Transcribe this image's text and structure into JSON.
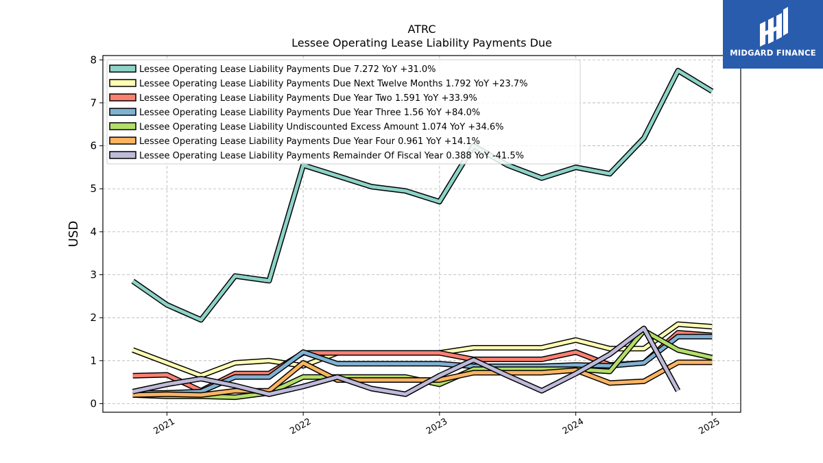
{
  "brand": {
    "name": "MIDGARD FINANCE",
    "bg_color": "#2a5cad",
    "icon": "midgard-logo-icon"
  },
  "chart_data": {
    "type": "line",
    "title": "ATRC",
    "subtitle": "Lessee Operating Lease Liability Payments Due",
    "ylabel": "USD",
    "xlabel": "",
    "ylim": [
      -0.2,
      8.1
    ],
    "xlim": [
      2020.53,
      2025.21
    ],
    "y_ticks": [
      0,
      1,
      2,
      3,
      4,
      5,
      6,
      7,
      8
    ],
    "x_ticks": [
      "2021",
      "2022",
      "2023",
      "2024",
      "2025"
    ],
    "grid": true,
    "legend_position": "top-left",
    "series": [
      {
        "name": "Lessee Operating Lease Liability Payments Due",
        "legend": "Lessee Operating Lease Liability Payments Due  7.272 YoY +31.0%",
        "color": "#8dd3c7",
        "points": [
          [
            2020.75,
            2.85
          ],
          [
            2021.0,
            2.3
          ],
          [
            2021.25,
            1.95
          ],
          [
            2021.5,
            2.97
          ],
          [
            2021.75,
            2.86
          ],
          [
            2022.0,
            5.55
          ],
          [
            2022.25,
            5.3
          ],
          [
            2022.5,
            5.05
          ],
          [
            2022.75,
            4.95
          ],
          [
            2023.0,
            4.7
          ],
          [
            2023.25,
            6.0
          ],
          [
            2023.5,
            5.55
          ],
          [
            2023.75,
            5.25
          ],
          [
            2024.0,
            5.5
          ],
          [
            2024.25,
            5.35
          ],
          [
            2024.5,
            6.18
          ],
          [
            2024.75,
            7.75
          ],
          [
            2025.0,
            7.27
          ]
        ]
      },
      {
        "name": "Lessee Operating Lease Liability Payments Due Next Twelve Months",
        "legend": "Lessee Operating Lease Liability Payments Due Next Twelve Months  1.792 YoY +23.7%",
        "color": "#ffffb3",
        "points": [
          [
            2020.75,
            1.25
          ],
          [
            2021.0,
            0.95
          ],
          [
            2021.25,
            0.65
          ],
          [
            2021.5,
            0.95
          ],
          [
            2021.75,
            1.0
          ],
          [
            2022.0,
            0.88
          ],
          [
            2022.25,
            1.18
          ],
          [
            2022.5,
            1.18
          ],
          [
            2022.75,
            1.18
          ],
          [
            2023.0,
            1.18
          ],
          [
            2023.25,
            1.3
          ],
          [
            2023.5,
            1.3
          ],
          [
            2023.75,
            1.3
          ],
          [
            2024.0,
            1.48
          ],
          [
            2024.25,
            1.28
          ],
          [
            2024.5,
            1.28
          ],
          [
            2024.75,
            1.85
          ],
          [
            2025.0,
            1.79
          ]
        ]
      },
      {
        "name": "Lessee Operating Lease Liability Payments Due Year Two",
        "legend": "Lessee Operating Lease Liability Payments Due Year Two  1.591 YoY +33.9%",
        "color": "#fb8072",
        "points": [
          [
            2020.75,
            0.65
          ],
          [
            2021.0,
            0.67
          ],
          [
            2021.25,
            0.3
          ],
          [
            2021.5,
            0.7
          ],
          [
            2021.75,
            0.7
          ],
          [
            2022.0,
            1.18
          ],
          [
            2022.25,
            1.18
          ],
          [
            2022.5,
            1.18
          ],
          [
            2022.75,
            1.18
          ],
          [
            2023.0,
            1.18
          ],
          [
            2023.25,
            1.03
          ],
          [
            2023.5,
            1.03
          ],
          [
            2023.75,
            1.03
          ],
          [
            2024.0,
            1.2
          ],
          [
            2024.25,
            0.9
          ],
          [
            2024.5,
            0.95
          ],
          [
            2024.75,
            1.65
          ],
          [
            2025.0,
            1.59
          ]
        ]
      },
      {
        "name": "Lessee Operating Lease Liability Payments Due Year Three",
        "legend": "Lessee Operating Lease Liability Payments Due Year Three  1.56 YoY +84.0%",
        "color": "#80b1d3",
        "points": [
          [
            2020.75,
            0.25
          ],
          [
            2021.0,
            0.25
          ],
          [
            2021.25,
            0.28
          ],
          [
            2021.5,
            0.62
          ],
          [
            2021.75,
            0.62
          ],
          [
            2022.0,
            1.2
          ],
          [
            2022.25,
            0.93
          ],
          [
            2022.5,
            0.93
          ],
          [
            2022.75,
            0.93
          ],
          [
            2023.0,
            0.93
          ],
          [
            2023.25,
            0.87
          ],
          [
            2023.5,
            0.87
          ],
          [
            2023.75,
            0.87
          ],
          [
            2024.0,
            0.9
          ],
          [
            2024.25,
            0.88
          ],
          [
            2024.5,
            0.95
          ],
          [
            2024.75,
            1.56
          ],
          [
            2025.0,
            1.56
          ]
        ]
      },
      {
        "name": "Lessee Operating Lease Liability Undiscounted Excess Amount",
        "legend": "Lessee Operating Lease Liability Undiscounted Excess Amount  1.074 YoY +34.6%",
        "color": "#b3de69",
        "points": [
          [
            2020.75,
            0.2
          ],
          [
            2021.0,
            0.17
          ],
          [
            2021.25,
            0.17
          ],
          [
            2021.5,
            0.15
          ],
          [
            2021.75,
            0.25
          ],
          [
            2022.0,
            0.62
          ],
          [
            2022.25,
            0.62
          ],
          [
            2022.5,
            0.62
          ],
          [
            2022.75,
            0.62
          ],
          [
            2023.0,
            0.45
          ],
          [
            2023.25,
            0.8
          ],
          [
            2023.5,
            0.8
          ],
          [
            2023.75,
            0.8
          ],
          [
            2024.0,
            0.8
          ],
          [
            2024.25,
            0.75
          ],
          [
            2024.5,
            1.7
          ],
          [
            2024.75,
            1.25
          ],
          [
            2025.0,
            1.07
          ]
        ]
      },
      {
        "name": "Lessee Operating Lease Liability Payments Due Year Four",
        "legend": "Lessee Operating Lease Liability Payments Due Year Four  0.961 YoY +14.1%",
        "color": "#fdb462",
        "points": [
          [
            2020.75,
            0.2
          ],
          [
            2021.0,
            0.22
          ],
          [
            2021.25,
            0.2
          ],
          [
            2021.5,
            0.3
          ],
          [
            2021.75,
            0.3
          ],
          [
            2022.0,
            0.95
          ],
          [
            2022.25,
            0.55
          ],
          [
            2022.5,
            0.55
          ],
          [
            2022.75,
            0.55
          ],
          [
            2023.0,
            0.55
          ],
          [
            2023.25,
            0.72
          ],
          [
            2023.5,
            0.72
          ],
          [
            2023.75,
            0.72
          ],
          [
            2024.0,
            0.78
          ],
          [
            2024.25,
            0.48
          ],
          [
            2024.5,
            0.52
          ],
          [
            2024.75,
            0.96
          ],
          [
            2025.0,
            0.96
          ]
        ]
      },
      {
        "name": "Lessee Operating Lease Liability Payments Remainder Of Fiscal Year",
        "legend": "Lessee Operating Lease Liability Payments Remainder Of Fiscal Year  0.388 YoY -41.5%",
        "color": "#bebada",
        "points": [
          [
            2020.75,
            0.28
          ],
          [
            2021.0,
            0.45
          ],
          [
            2021.25,
            0.58
          ],
          [
            2021.5,
            0.42
          ],
          [
            2021.75,
            0.22
          ],
          [
            2022.0,
            0.4
          ],
          [
            2022.25,
            0.62
          ],
          [
            2022.5,
            0.35
          ],
          [
            2022.75,
            0.22
          ],
          [
            2023.0,
            0.65
          ],
          [
            2023.25,
            1.02
          ],
          [
            2023.5,
            0.65
          ],
          [
            2023.75,
            0.3
          ],
          [
            2024.0,
            0.7
          ],
          [
            2024.25,
            1.15
          ],
          [
            2024.5,
            1.75
          ],
          [
            2024.75,
            0.3
          ]
        ]
      }
    ]
  }
}
